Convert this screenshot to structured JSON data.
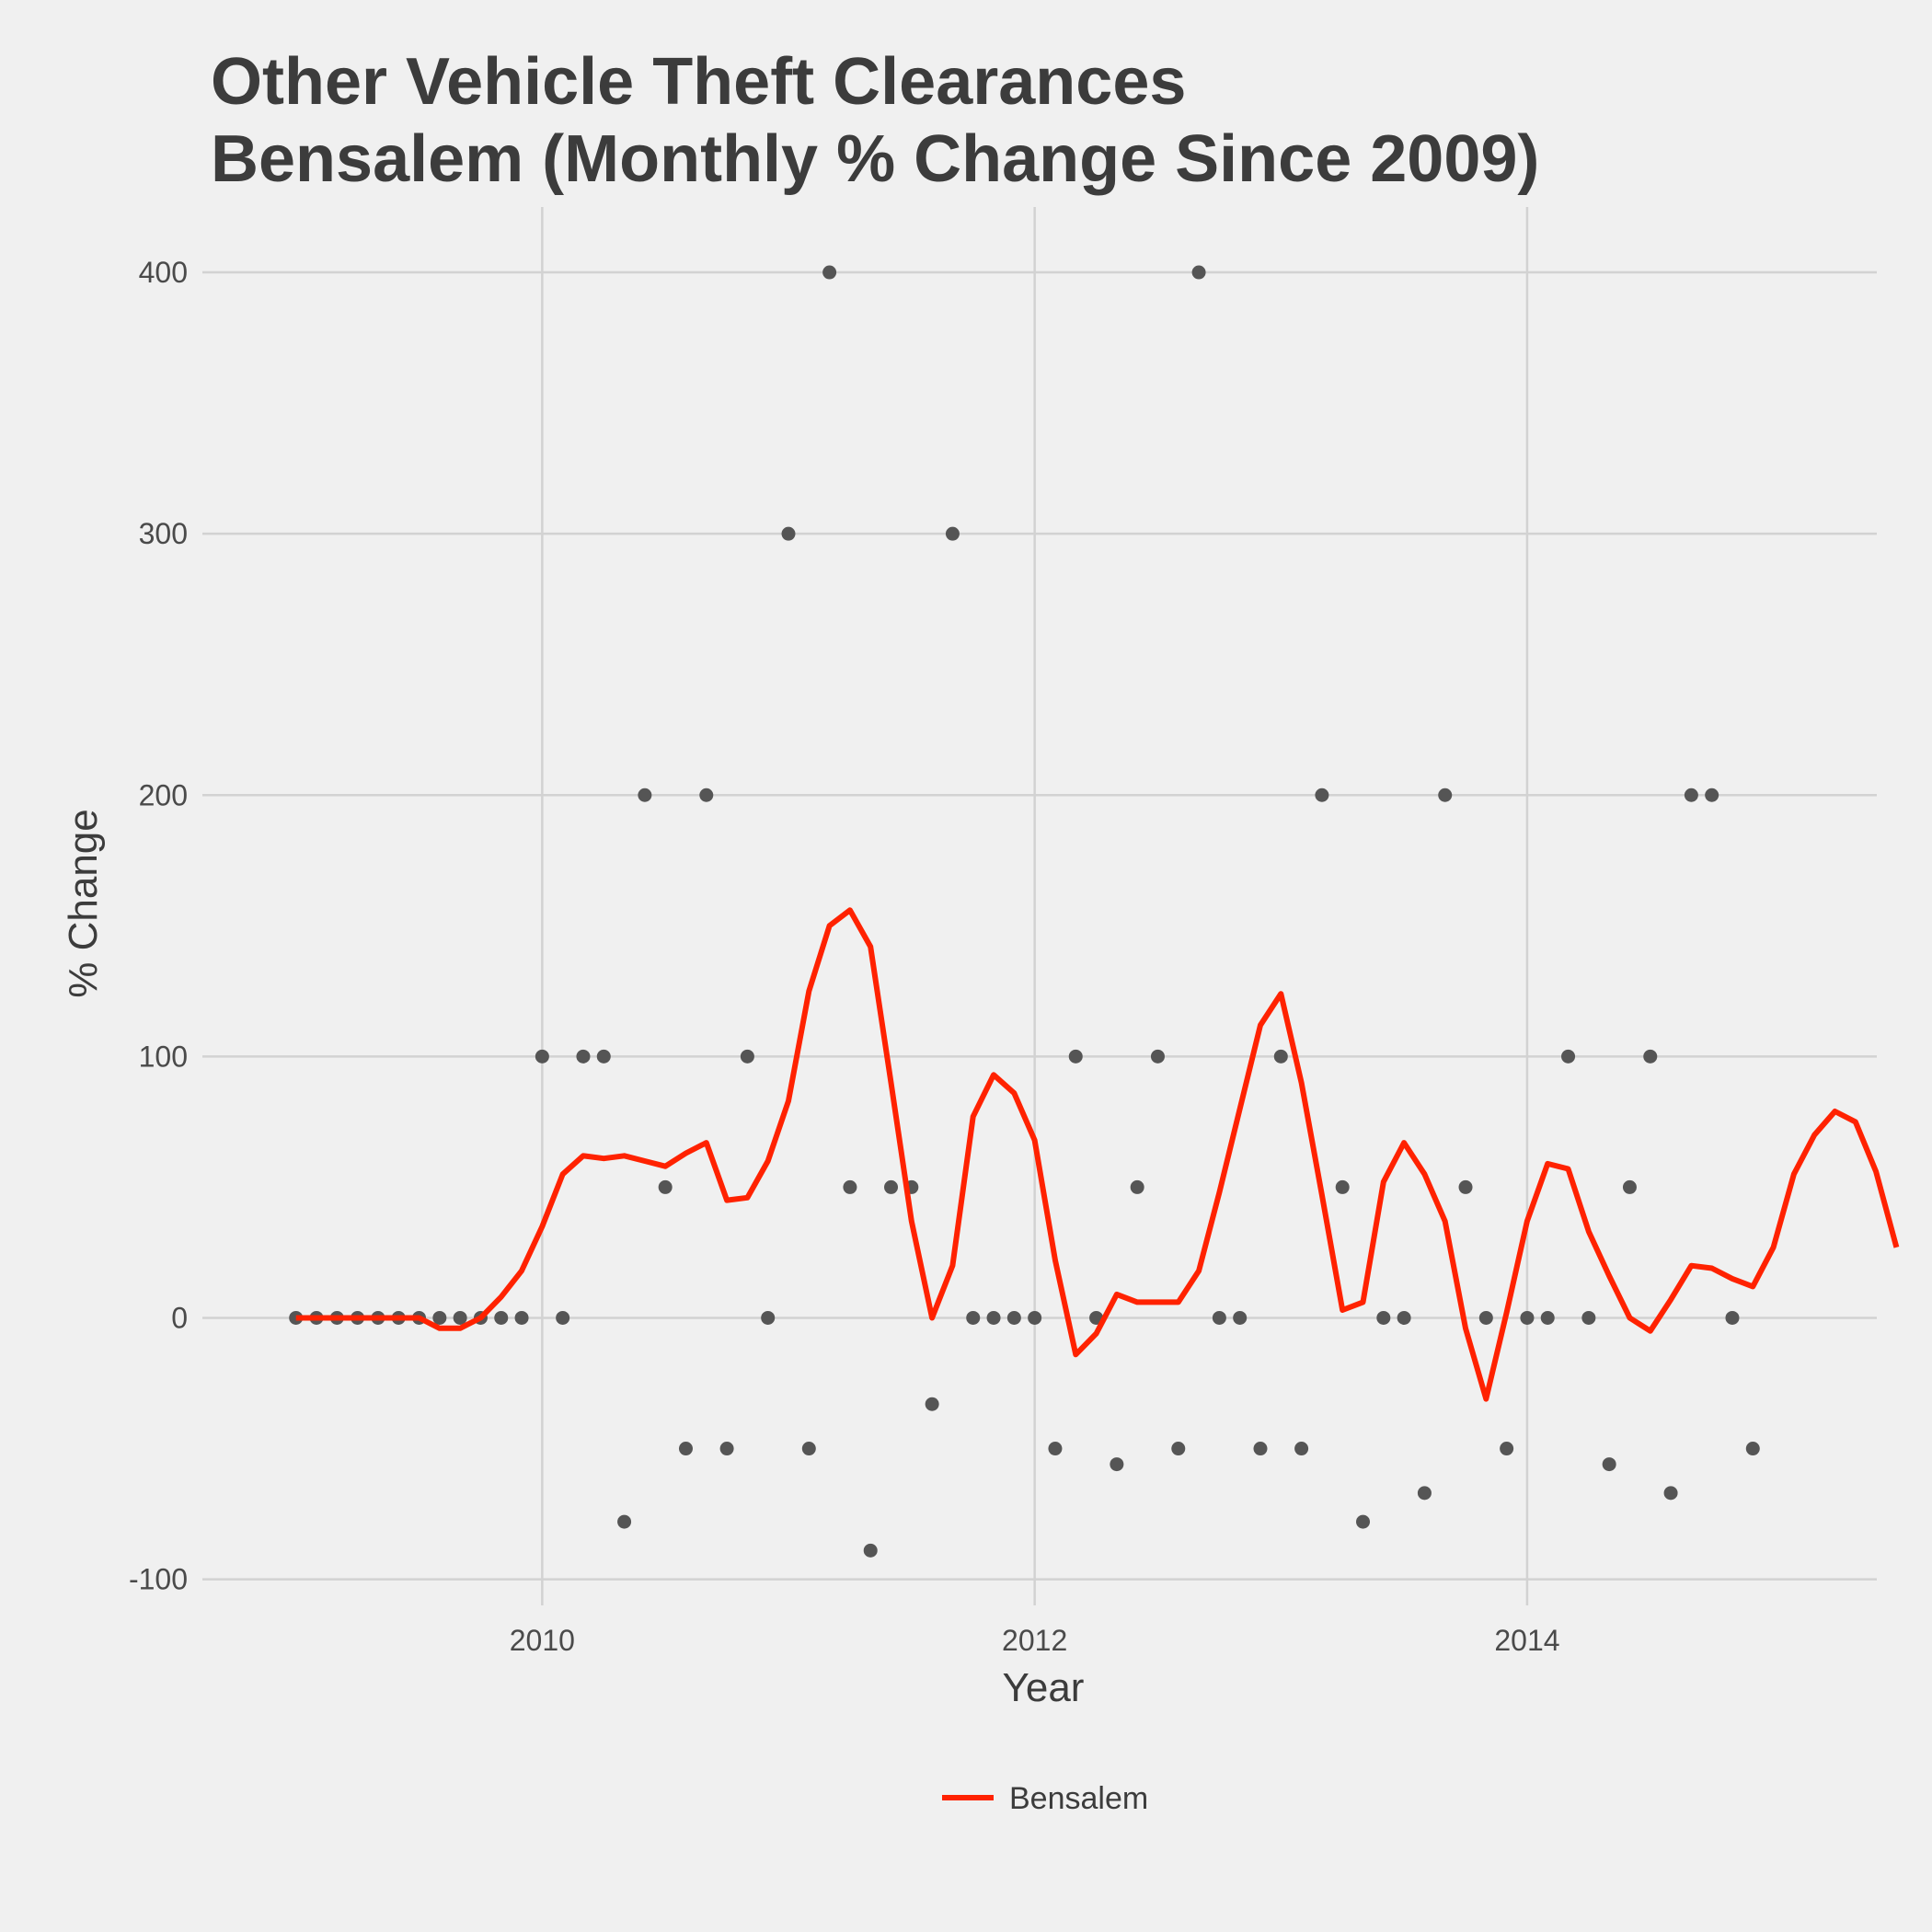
{
  "chart_data": {
    "type": "line",
    "title_lines": [
      "Other Vehicle Theft Clearances",
      "Bensalem (Monthly % Change Since 2009)"
    ],
    "xlabel": "Year",
    "ylabel": "% Change",
    "xlim": [
      2008.62,
      2015.42
    ],
    "ylim": [
      -110,
      425
    ],
    "x_ticks": [
      2010,
      2012,
      2014
    ],
    "y_ticks": [
      -100,
      0,
      100,
      200,
      300,
      400
    ],
    "grid": true,
    "legend_position": "bottom",
    "colors": {
      "line": "#ff2200",
      "points": "#555555",
      "background": "#f0f0f0",
      "grid": "#d2d2d2"
    },
    "x_start": "2009-01",
    "points": {
      "name": "Monthly % change",
      "values": [
        0,
        0,
        0,
        0,
        0,
        0,
        0,
        0,
        0,
        0,
        0,
        0,
        100,
        0,
        100,
        100,
        -78,
        200,
        50,
        -50,
        200,
        -50,
        100,
        0,
        300,
        -50,
        400,
        50,
        -89,
        50,
        50,
        -33,
        300,
        0,
        0,
        0,
        0,
        -50,
        100,
        0,
        -56,
        50,
        100,
        -50,
        400,
        0,
        0,
        -50,
        100,
        -50,
        200,
        50,
        -78,
        0,
        0,
        -67,
        200,
        50,
        0,
        -50,
        0,
        0,
        100,
        0,
        -56,
        50,
        100,
        -67,
        200,
        200,
        0,
        -50
      ]
    },
    "series": [
      {
        "name": "Bensalem",
        "values": [
          0,
          0,
          0,
          0,
          0,
          0,
          0,
          -4,
          -4,
          0,
          8,
          18,
          35,
          55,
          62,
          61,
          62,
          60,
          58,
          63,
          67,
          45,
          46,
          60,
          83,
          125,
          150,
          156,
          142,
          90,
          37,
          0,
          20,
          77,
          93,
          86,
          68,
          22,
          -14,
          -6,
          9,
          6,
          6,
          6,
          18,
          48,
          80,
          112,
          124,
          90,
          47,
          3,
          6,
          52,
          67,
          55,
          37,
          -4,
          -31,
          2,
          37,
          59,
          57,
          33,
          16,
          0,
          -5,
          7,
          20,
          19,
          15,
          12,
          27,
          55,
          70,
          79,
          75,
          56,
          27
        ]
      }
    ]
  }
}
